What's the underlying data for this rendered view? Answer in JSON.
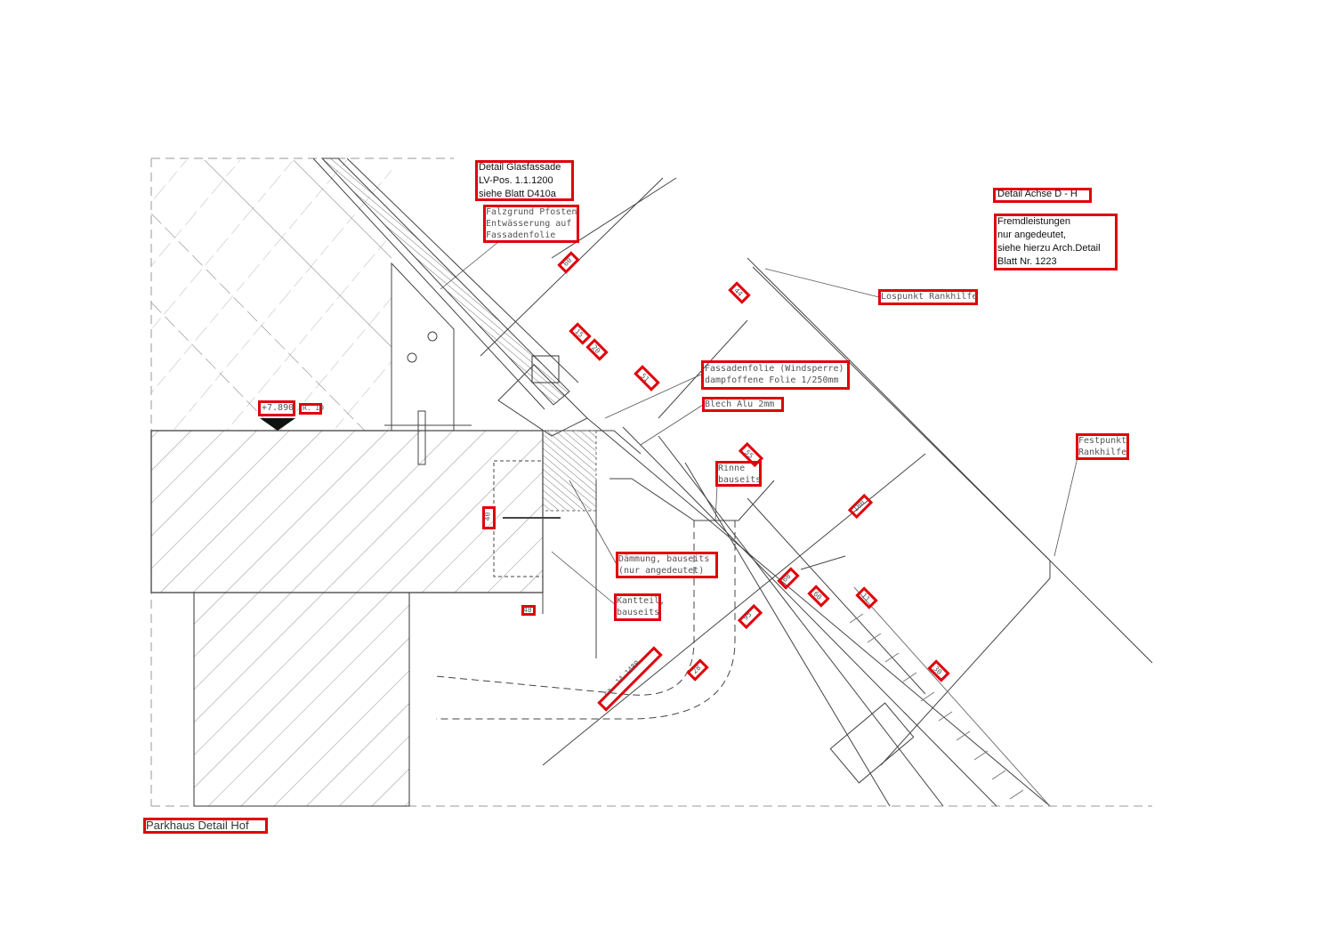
{
  "labels": {
    "detail_glasfassade": "Detail Glasfassade\nLV-Pos. 1.1.1200\nsiehe Blatt D410a",
    "falzgrund": "Falzgrund Pfosten\nEntwässerung auf\nFassadenfolie",
    "detail_achse": "Detail Achse D - H",
    "fremdleistungen": "Fremdleistungen\nnur angedeutet,\nsiehe hierzu Arch.Detail\nBlatt Nr. 1223",
    "lospunkt": "Lospunkt Rankhilfe",
    "fassadenfolie": "Fassadenfolie (Windsperre)\ndampfoffene Folie 1/250mm",
    "blech": "Blech Alu 2mm",
    "festpunkt": "Festpunkt\nRankhilfe",
    "rinne": "Rinne\nbauseits",
    "daemmung": "Dämmung, bauseits\n(nur angedeutet)",
    "kantteil": "Kantteil,\nbauseits",
    "level": "+7.890",
    "level_note": "R. ID",
    "footer": "Parkhaus Detail Hof"
  },
  "dimensions": {
    "d1": "60",
    "d2": "44",
    "d3": "15",
    "d4": "20",
    "d5": "51",
    "d6": "55",
    "d7": "180",
    "d8": "40",
    "d9": "68",
    "d10": "60",
    "d11": "11",
    "d12": "95",
    "d13": "48",
    "d14": "28",
    "d15": "30",
    "d16": "15",
    "d17": "ca. 14-1480"
  },
  "colors": {
    "annotation_box": "#e0000b",
    "line": "#333333",
    "hatch": "#777777"
  }
}
